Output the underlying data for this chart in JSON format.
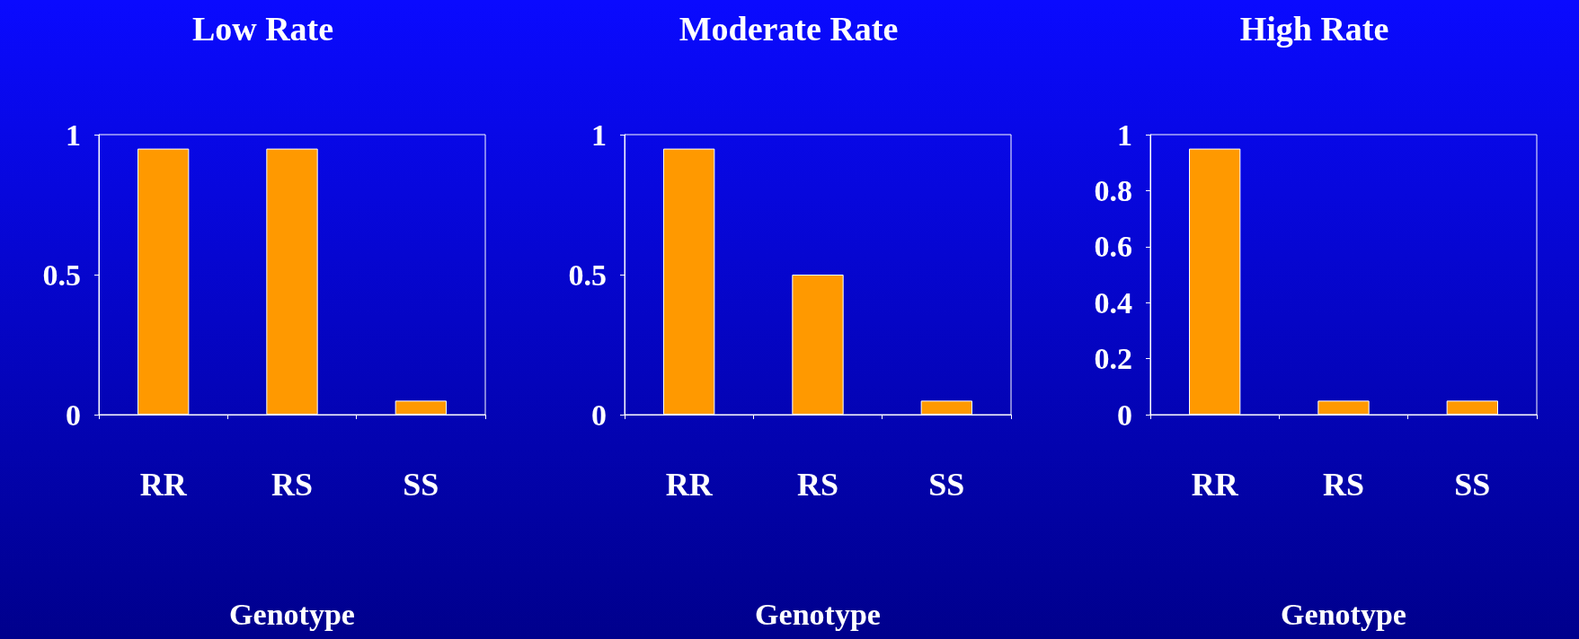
{
  "chart_data": [
    {
      "type": "bar",
      "title": "Low Rate",
      "xlabel": "Genotype",
      "categories": [
        "RR",
        "RS",
        "SS"
      ],
      "values": [
        0.95,
        0.95,
        0.05
      ],
      "color": "#ff9900",
      "ylim": [
        0,
        1
      ],
      "yticks": [
        0,
        0.5,
        1
      ],
      "grid": false
    },
    {
      "type": "bar",
      "title": "Moderate Rate",
      "xlabel": "Genotype",
      "categories": [
        "RR",
        "RS",
        "SS"
      ],
      "values": [
        0.95,
        0.5,
        0.05
      ],
      "color": "#ff9900",
      "ylim": [
        0,
        1
      ],
      "yticks": [
        0,
        0.5,
        1
      ],
      "grid": false
    },
    {
      "type": "bar",
      "title": "High Rate",
      "xlabel": "Genotype",
      "categories": [
        "RR",
        "RS",
        "SS"
      ],
      "values": [
        0.95,
        0.05,
        0.05
      ],
      "color": "#ff9900",
      "ylim": [
        0,
        1
      ],
      "yticks": [
        0,
        0.2,
        0.4,
        0.6,
        0.8,
        1
      ],
      "grid": false
    }
  ]
}
